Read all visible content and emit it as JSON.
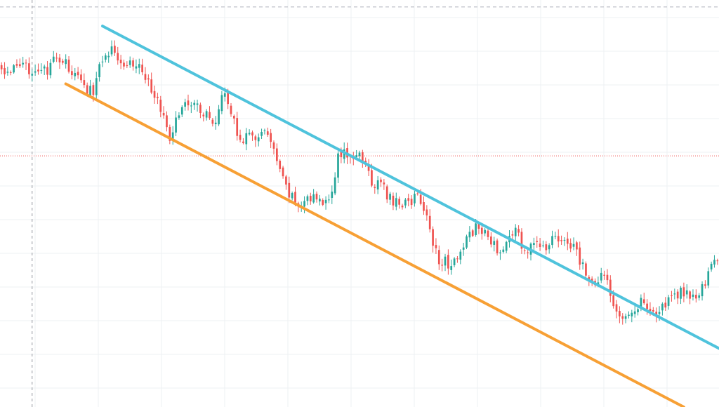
{
  "chart_data": {
    "type": "candlestick",
    "title": "",
    "xlabel": "",
    "ylabel": "",
    "x_count": 235,
    "ylim": [
      0,
      1000
    ],
    "grid": true,
    "legend": "none",
    "colors": {
      "background": "#ffffff",
      "up": "#26a69a",
      "down": "#ef5350",
      "grid": "#eef0f3",
      "upper_trendline": "#4fc3dc",
      "lower_trendline": "#f7a035",
      "crosshair": "#9598a1",
      "price_line": "#ef5350",
      "top_dashed": "#b2b5be"
    },
    "price_line": 617,
    "top_dashed_level": 983,
    "crosshair_x": 10,
    "anchors": [
      [
        0,
        825
      ],
      [
        5,
        830
      ],
      [
        10,
        833
      ],
      [
        15,
        820
      ],
      [
        18,
        862
      ],
      [
        22,
        835
      ],
      [
        27,
        783
      ],
      [
        30,
        780
      ],
      [
        33,
        860
      ],
      [
        36,
        880
      ],
      [
        40,
        850
      ],
      [
        45,
        840
      ],
      [
        50,
        770
      ],
      [
        55,
        660
      ],
      [
        58,
        722
      ],
      [
        62,
        755
      ],
      [
        65,
        728
      ],
      [
        70,
        700
      ],
      [
        72,
        780
      ],
      [
        75,
        720
      ],
      [
        78,
        660
      ],
      [
        82,
        660
      ],
      [
        86,
        680
      ],
      [
        88,
        645
      ],
      [
        91,
        575
      ],
      [
        94,
        520
      ],
      [
        97,
        500
      ],
      [
        100,
        510
      ],
      [
        103,
        510
      ],
      [
        106,
        505
      ],
      [
        108,
        540
      ],
      [
        110,
        612
      ],
      [
        113,
        625
      ],
      [
        115,
        615
      ],
      [
        119,
        605
      ],
      [
        121,
        545
      ],
      [
        124,
        550
      ],
      [
        127,
        510
      ],
      [
        130,
        500
      ],
      [
        133,
        505
      ],
      [
        136,
        515
      ],
      [
        138,
        490
      ],
      [
        141,
        405
      ],
      [
        143,
        365
      ],
      [
        146,
        355
      ],
      [
        149,
        350
      ],
      [
        152,
        420
      ],
      [
        155,
        438
      ],
      [
        159,
        420
      ],
      [
        162,
        380
      ],
      [
        165,
        410
      ],
      [
        168,
        428
      ],
      [
        172,
        378
      ],
      [
        175,
        405
      ],
      [
        177,
        395
      ],
      [
        182,
        413
      ],
      [
        186,
        395
      ],
      [
        188,
        378
      ],
      [
        191,
        325
      ],
      [
        194,
        300
      ],
      [
        197,
        328
      ],
      [
        200,
        260
      ],
      [
        202,
        230
      ],
      [
        204,
        225
      ],
      [
        206,
        244
      ],
      [
        210,
        260
      ],
      [
        214,
        230
      ],
      [
        217,
        248
      ],
      [
        221,
        278
      ],
      [
        224,
        282
      ],
      [
        228,
        268
      ],
      [
        232,
        348
      ],
      [
        234,
        372
      ]
    ],
    "upper_trendline": {
      "from": [
        33,
        936
      ],
      "to": [
        235,
        142
      ]
    },
    "lower_trendline": {
      "from": [
        21,
        794
      ],
      "to": [
        223,
        0
      ]
    }
  }
}
